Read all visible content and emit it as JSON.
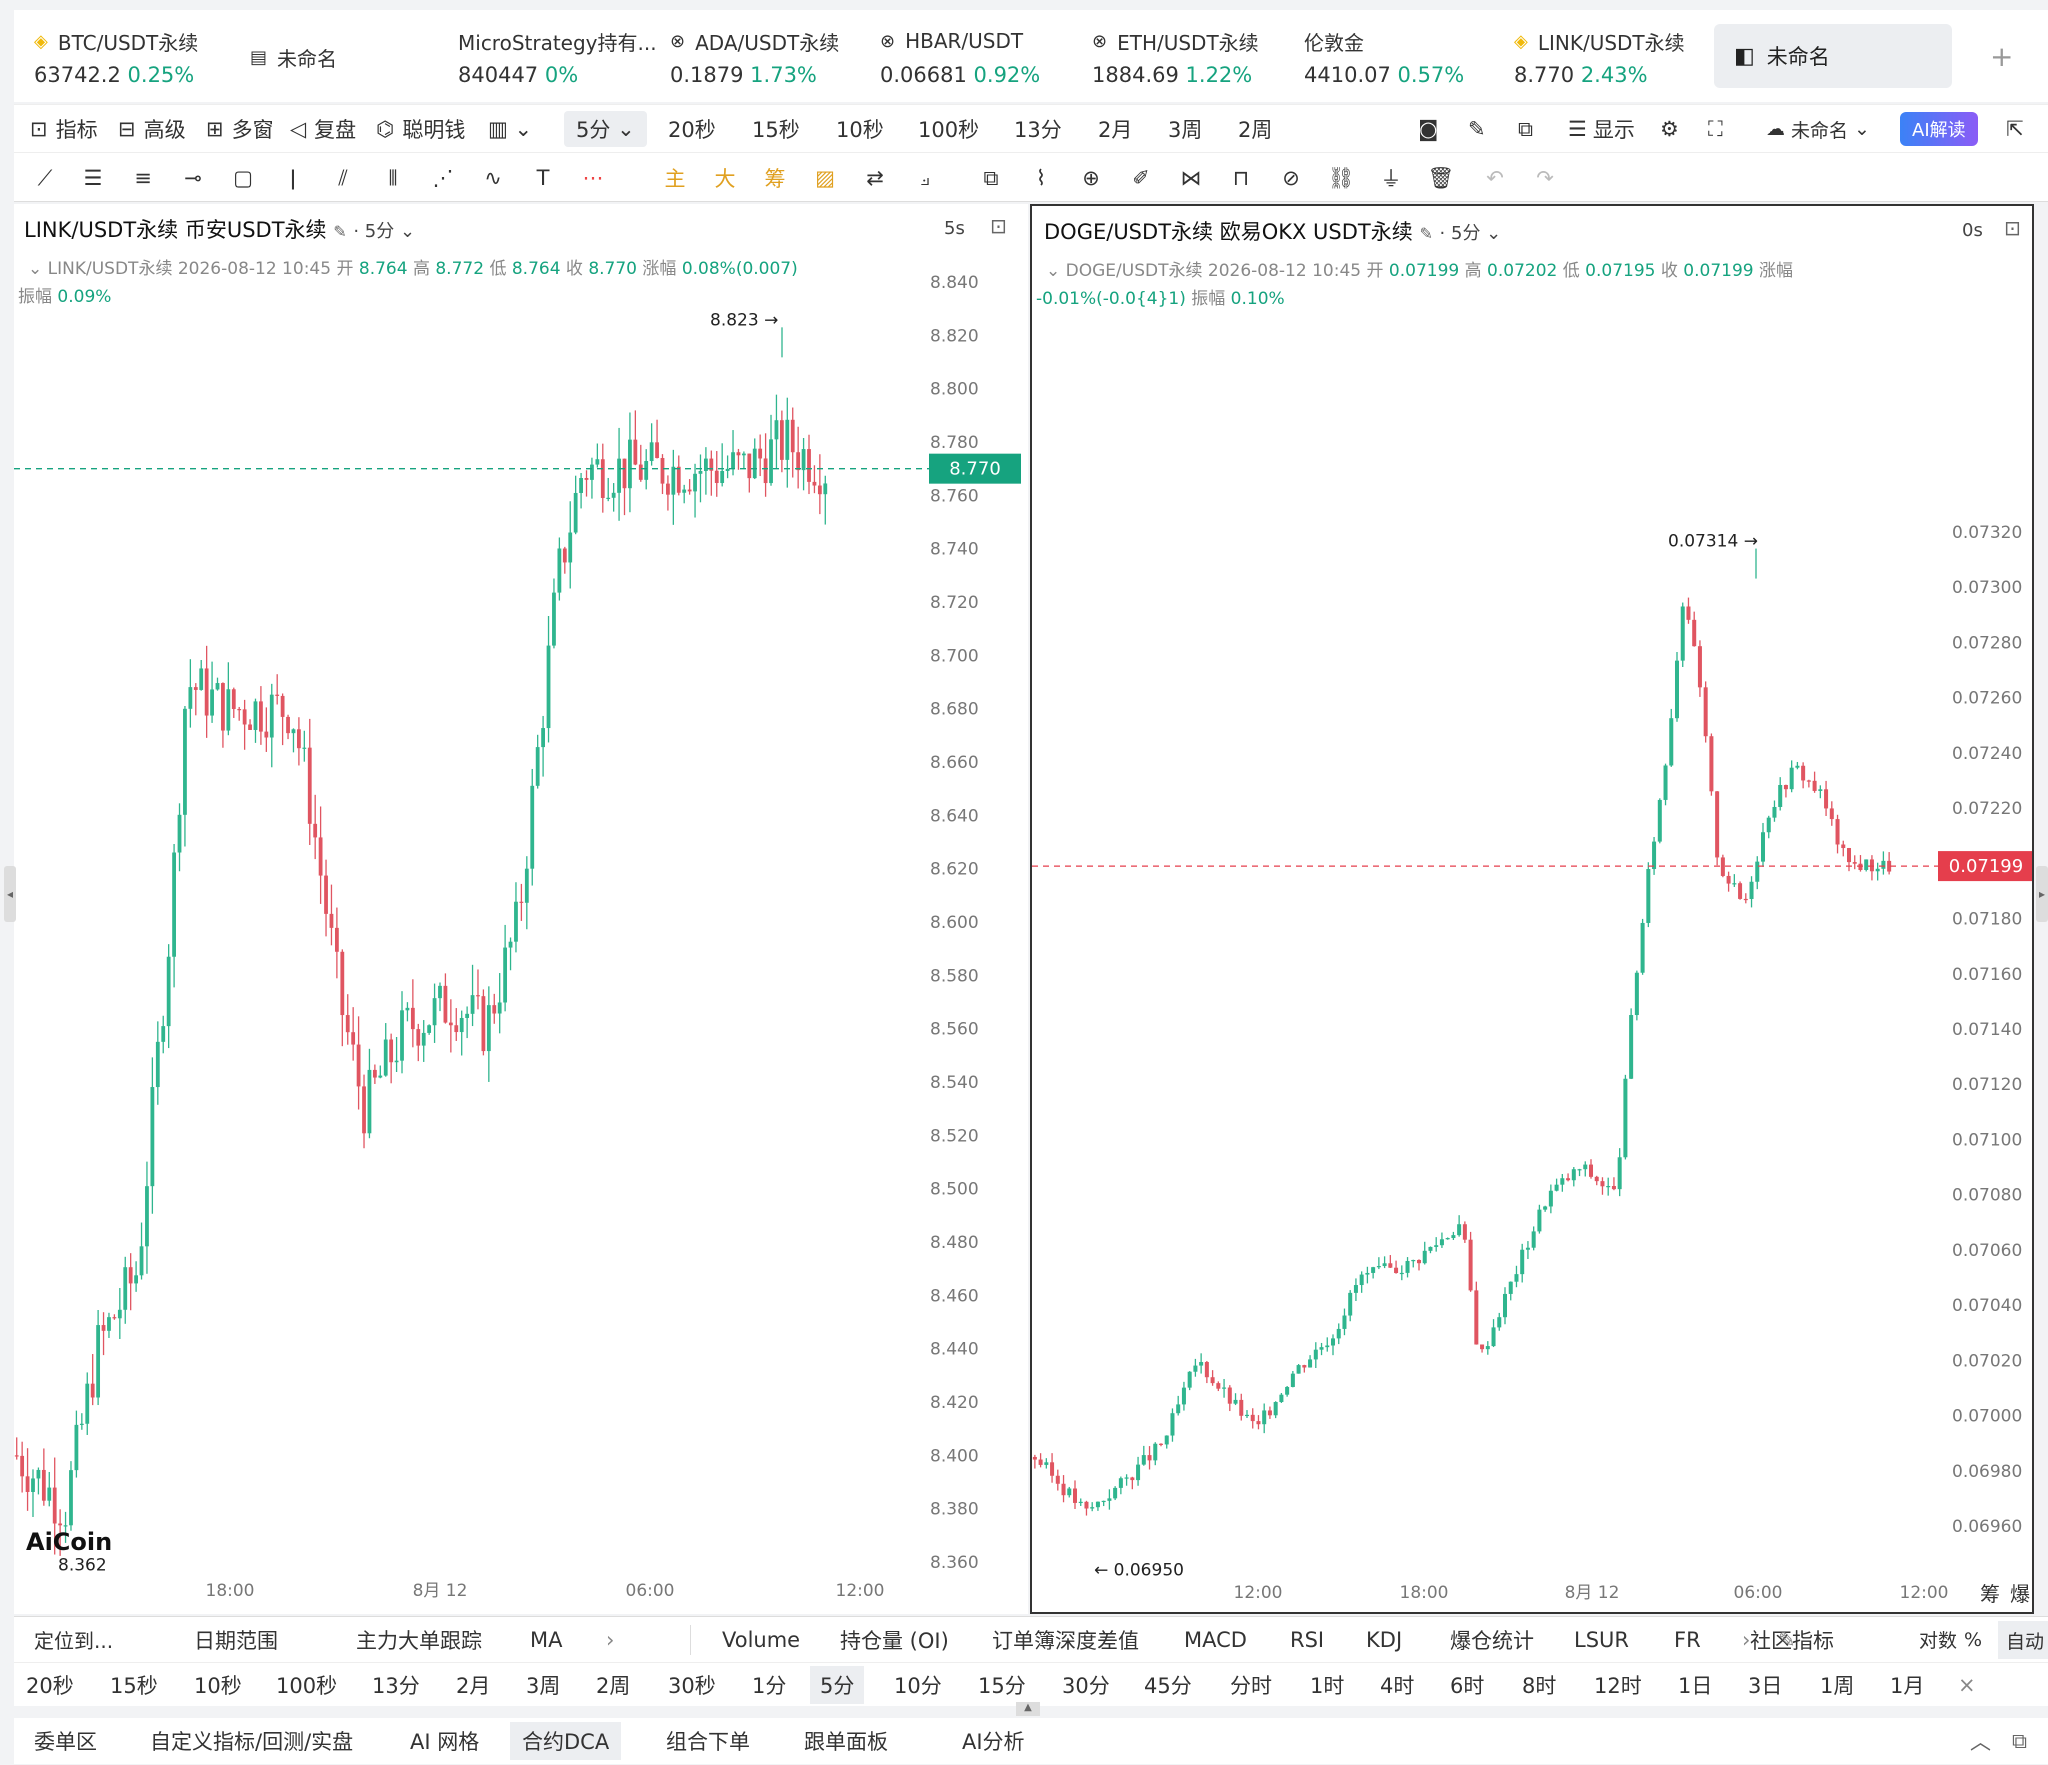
{
  "tickers": [
    {
      "name": "BTC/USDT永续",
      "price": "63742.2",
      "chg": "0.25%",
      "icon": "diamond-icon"
    },
    {
      "name": "未命名",
      "price": "",
      "chg": "",
      "icon": "layout-icon"
    },
    {
      "name": "MicroStrategy持有...",
      "price": "840447",
      "chg": "0%",
      "icon": ""
    },
    {
      "name": "ADA/USDT永续",
      "price": "0.1879",
      "chg": "1.73%",
      "icon": "okx-icon"
    },
    {
      "name": "HBAR/USDT",
      "price": "0.06681",
      "chg": "0.92%",
      "icon": "okx-icon"
    },
    {
      "name": "ETH/USDT永续",
      "price": "1884.69",
      "chg": "1.22%",
      "icon": "okx-icon"
    },
    {
      "name": "伦敦金",
      "price": "4410.07",
      "chg": "0.57%",
      "icon": ""
    },
    {
      "name": "LINK/USDT永续",
      "price": "8.770",
      "chg": "2.43%",
      "icon": "diamond-icon"
    }
  ],
  "active_tab": "未命名",
  "toolbar": {
    "indicators": "指标",
    "advanced": "高级",
    "multi": "多窗",
    "replay": "复盘",
    "smart": "聪明钱",
    "interval_selected": "5分",
    "intervals": [
      "20秒",
      "15秒",
      "10秒",
      "100秒",
      "13分",
      "2月",
      "3周",
      "2周"
    ],
    "display": "显示",
    "unnamed": "未命名",
    "ai": "AI解读"
  },
  "draw_tools": {
    "main": "主",
    "big": "大",
    "chip": "筹"
  },
  "left_chart": {
    "title": "LINK/USDT永续 币安USDT永续",
    "interval": "5分",
    "countdown": "5s",
    "ohlc_name": "LINK/USDT永续",
    "time": "2026-08-12 10:45",
    "open_l": "开",
    "open": "8.764",
    "high_l": "高",
    "high": "8.772",
    "low_l": "低",
    "low": "8.764",
    "close_l": "收",
    "close": "8.770",
    "chg_l": "涨幅",
    "chg": "0.08%(0.007)",
    "amp_l": "振幅",
    "amp": "0.09%",
    "max_label": "8.823 →",
    "min_label": "8.362",
    "last": "8.770",
    "yticks": [
      "8.840",
      "8.820",
      "8.800",
      "8.780",
      "8.760",
      "8.740",
      "8.720",
      "8.700",
      "8.680",
      "8.660",
      "8.640",
      "8.620",
      "8.600",
      "8.580",
      "8.560",
      "8.540",
      "8.520",
      "8.500",
      "8.480",
      "8.460",
      "8.440",
      "8.420",
      "8.400",
      "8.380",
      "8.360"
    ],
    "xticks": [
      "18:00",
      "8月 12",
      "06:00",
      "12:00"
    ],
    "logo": "AiCoin"
  },
  "right_chart": {
    "title": "DOGE/USDT永续 欧易OKX USDT永续",
    "interval": "5分",
    "countdown": "0s",
    "ohlc_name": "DOGE/USDT永续",
    "time": "2026-08-12 10:45",
    "open": "0.07199",
    "high": "0.07202",
    "low": "0.07195",
    "close": "0.07199",
    "chg": "-0.01%(-0.0{4}1)",
    "amp": "0.10%",
    "max_label": "0.07314 →",
    "min_label": "← 0.06950",
    "last": "0.07199",
    "yticks": [
      "0.07320",
      "0.07300",
      "0.07280",
      "0.07260",
      "0.07240",
      "0.07220",
      "0.07200",
      "0.07180",
      "0.07160",
      "0.07140",
      "0.07120",
      "0.07100",
      "0.07080",
      "0.07060",
      "0.07040",
      "0.07020",
      "0.07000",
      "0.06980",
      "0.06960"
    ],
    "xticks": [
      "12:00",
      "18:00",
      "8月 12",
      "06:00",
      "12:00"
    ],
    "chip": "筹",
    "burst": "爆"
  },
  "indicator_bar": [
    "定位到...",
    "日期范围",
    "主力大单跟踪",
    "MA",
    "Volume",
    "持仓量 (OI)",
    "订单簿深度差值",
    "MACD",
    "RSI",
    "KDJ",
    "爆仓统计",
    "LSUR",
    "FR",
    "社区指标",
    "对数",
    "%",
    "自动"
  ],
  "interval_bar": [
    "20秒",
    "15秒",
    "10秒",
    "100秒",
    "13分",
    "2月",
    "3周",
    "2周",
    "30秒",
    "1分",
    "5分",
    "10分",
    "15分",
    "30分",
    "45分",
    "分时",
    "1时",
    "4时",
    "6时",
    "8时",
    "12时",
    "1日",
    "3日",
    "1周",
    "1月"
  ],
  "interval_bar_selected": "5分",
  "bottom_tabs": [
    "委单区",
    "自定义指标/回测/实盘",
    "AI 网格",
    "合约DCA",
    "组合下单",
    "跟单面板",
    "AI分析"
  ],
  "bottom_selected": "合约DCA",
  "colors": {
    "up": "#2fb58e",
    "down": "#e05561",
    "last_up": "#16a37f",
    "last_down": "#e53e4c"
  }
}
